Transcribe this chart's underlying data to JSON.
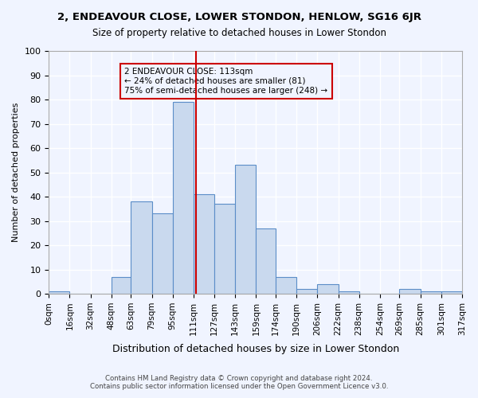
{
  "title": "2, ENDEAVOUR CLOSE, LOWER STONDON, HENLOW, SG16 6JR",
  "subtitle": "Size of property relative to detached houses in Lower Stondon",
  "xlabel": "Distribution of detached houses by size in Lower Stondon",
  "ylabel": "Number of detached properties",
  "footer_line1": "Contains HM Land Registry data © Crown copyright and database right 2024.",
  "footer_line2": "Contains public sector information licensed under the Open Government Licence v3.0.",
  "bin_labels": [
    "0sqm",
    "16sqm",
    "32sqm",
    "48sqm",
    "63sqm",
    "79sqm",
    "95sqm",
    "111sqm",
    "127sqm",
    "143sqm",
    "159sqm",
    "174sqm",
    "190sqm",
    "206sqm",
    "222sqm",
    "238sqm",
    "254sqm",
    "269sqm",
    "285sqm",
    "301sqm",
    "317sqm"
  ],
  "bar_values": [
    1,
    0,
    0,
    7,
    38,
    33,
    79,
    41,
    37,
    53,
    27,
    7,
    2,
    4,
    1,
    0,
    0,
    2,
    1,
    1
  ],
  "bin_edges": [
    0,
    16,
    32,
    48,
    63,
    79,
    95,
    111,
    127,
    143,
    159,
    174,
    190,
    206,
    222,
    238,
    254,
    269,
    285,
    301,
    317
  ],
  "property_size": 113,
  "property_label": "2 ENDEAVOUR CLOSE: 113sqm",
  "smaller_pct": 24,
  "smaller_count": 81,
  "larger_pct": 75,
  "larger_count": 248,
  "bar_fill_color": "#c9d9ee",
  "bar_edge_color": "#5b8dc8",
  "vline_color": "#cc0000",
  "annotation_box_color": "#cc0000",
  "background_color": "#f0f4ff",
  "grid_color": "#ffffff",
  "ylim": [
    0,
    100
  ],
  "yticks": [
    0,
    10,
    20,
    30,
    40,
    50,
    60,
    70,
    80,
    90,
    100
  ]
}
